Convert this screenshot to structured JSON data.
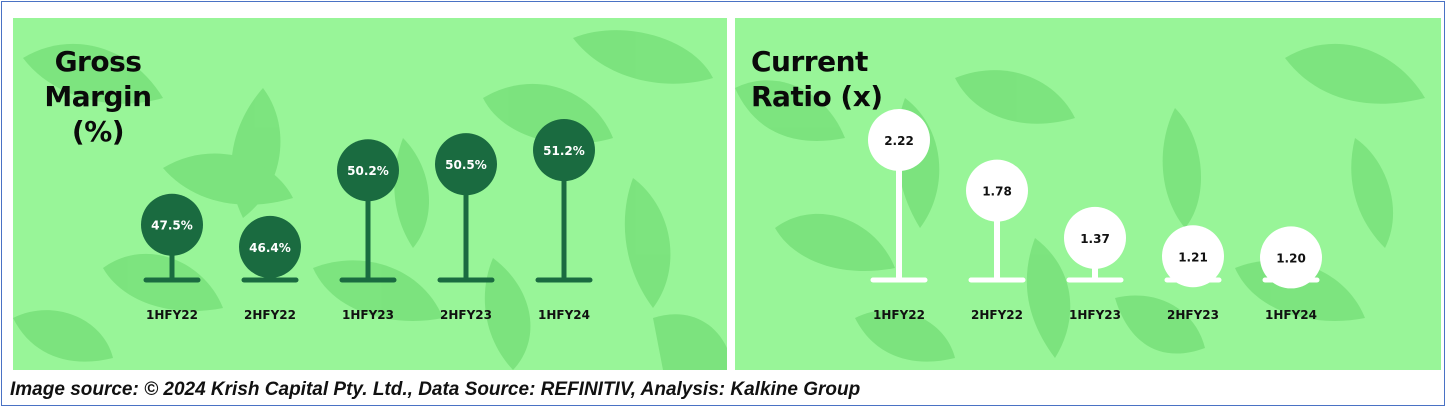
{
  "colors": {
    "panel_bg": "#98f598",
    "leaf": "#78e07a",
    "gross_margin_mark": "#1a6b40",
    "current_ratio_mark": "#ffffff",
    "frame_border": "#4a72c4"
  },
  "gross_margin": {
    "title_lines": [
      "Gross",
      "Margin",
      "(%)"
    ]
  },
  "current_ratio": {
    "title_lines": [
      "Current",
      "Ratio (x)"
    ]
  },
  "caption": "Image source: © 2024 Krish Capital Pty. Ltd., Data Source: REFINITIV, Analysis: Kalkine Group",
  "chart_data": [
    {
      "type": "lollipop",
      "title": "Gross Margin (%)",
      "categories": [
        "1HFY22",
        "2HFY22",
        "1HFY23",
        "2HFY23",
        "1HFY24"
      ],
      "values": [
        47.5,
        46.4,
        50.2,
        50.5,
        51.2
      ],
      "data_labels": [
        "47.5%",
        "46.4%",
        "50.2%",
        "50.5%",
        "51.2%"
      ],
      "ylim": [
        46.0,
        51.5
      ]
    },
    {
      "type": "lollipop",
      "title": "Current Ratio (x)",
      "categories": [
        "1HFY22",
        "2HFY22",
        "1HFY23",
        "2HFY23",
        "1HFY24"
      ],
      "values": [
        2.22,
        1.78,
        1.37,
        1.21,
        1.2
      ],
      "data_labels": [
        "2.22",
        "1.78",
        "1.37",
        "1.21",
        "1.20"
      ],
      "ylim": [
        0.7,
        2.35
      ]
    }
  ]
}
